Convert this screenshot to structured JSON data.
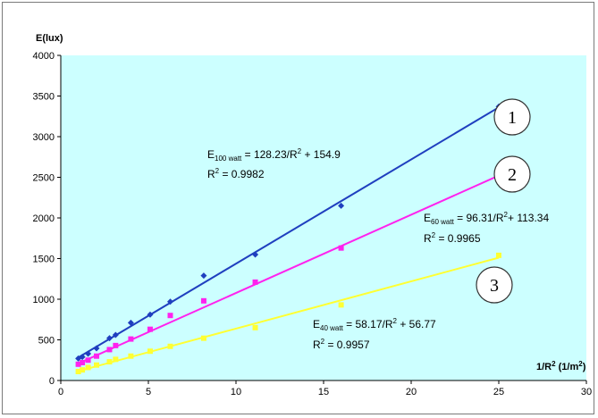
{
  "chart_data": {
    "type": "scatter",
    "ylabel": "E(lux)",
    "xlabel_main": "1/R",
    "xlabel_sup": "2",
    "xlabel_unit_open": " (1/m",
    "xlabel_unit_sup": "2",
    "xlabel_unit_close": ")",
    "xlim": [
      0,
      30
    ],
    "ylim": [
      0,
      4000
    ],
    "x_ticks": [
      0,
      5,
      10,
      15,
      20,
      25,
      30
    ],
    "y_ticks": [
      0,
      500,
      1000,
      1500,
      2000,
      2500,
      3000,
      3500,
      4000
    ],
    "plot_background": "#ccffff",
    "grid": false,
    "series": [
      {
        "color": "#1f3fbf",
        "marker_color": "#1f3fbf",
        "marker": "diamond",
        "badge": "1",
        "fit": {
          "slope": 128.23,
          "intercept": 154.9
        },
        "points": [
          [
            1.0,
            270
          ],
          [
            1.23,
            290
          ],
          [
            1.56,
            330
          ],
          [
            2.04,
            395
          ],
          [
            2.78,
            520
          ],
          [
            3.13,
            560
          ],
          [
            4.0,
            710
          ],
          [
            5.1,
            810
          ],
          [
            6.25,
            970
          ],
          [
            8.16,
            1290
          ],
          [
            11.1,
            1550
          ],
          [
            16.0,
            2150
          ],
          [
            25.0,
            3370
          ]
        ],
        "equation": {
          "pre": "E",
          "sub": "100 watt",
          "mid": " = 128.23/R",
          "sup": "2",
          "post": " + 154.9"
        },
        "r2": {
          "pre": "R",
          "sup": "2",
          "post": " = 0.9982"
        }
      },
      {
        "color": "#ff22ee",
        "marker_color": "#ff22ee",
        "marker": "square",
        "badge": "2",
        "fit": {
          "slope": 96.31,
          "intercept": 113.34
        },
        "points": [
          [
            1.0,
            200
          ],
          [
            1.23,
            220
          ],
          [
            1.56,
            250
          ],
          [
            2.04,
            300
          ],
          [
            2.78,
            380
          ],
          [
            3.13,
            430
          ],
          [
            4.0,
            510
          ],
          [
            5.1,
            630
          ],
          [
            6.25,
            800
          ],
          [
            8.16,
            980
          ],
          [
            11.1,
            1210
          ],
          [
            16.0,
            1630
          ],
          [
            25.0,
            2480
          ]
        ],
        "equation": {
          "pre": "E",
          "sub": "60 watt",
          "mid": " = 96.31/R",
          "sup": "2",
          "post": "+ 113.34"
        },
        "r2": {
          "pre": "R",
          "sup": "2",
          "post": " = 0.9965"
        }
      },
      {
        "color": "#ffff33",
        "marker_color": "#ffff33",
        "marker": "square",
        "badge": "3",
        "fit": {
          "slope": 58.17,
          "intercept": 56.77
        },
        "points": [
          [
            1.0,
            110
          ],
          [
            1.23,
            130
          ],
          [
            1.56,
            160
          ],
          [
            2.04,
            190
          ],
          [
            2.78,
            230
          ],
          [
            3.13,
            260
          ],
          [
            4.0,
            300
          ],
          [
            5.1,
            360
          ],
          [
            6.25,
            420
          ],
          [
            8.16,
            520
          ],
          [
            11.1,
            650
          ],
          [
            16.0,
            930
          ],
          [
            25.0,
            1540
          ]
        ],
        "equation": {
          "pre": "E",
          "sub": "40 watt",
          "mid": " = 58.17/R",
          "sup": "2",
          "post": " + 56.77"
        },
        "r2": {
          "pre": "R",
          "sup": "2",
          "post": " = 0.9957"
        }
      }
    ]
  }
}
